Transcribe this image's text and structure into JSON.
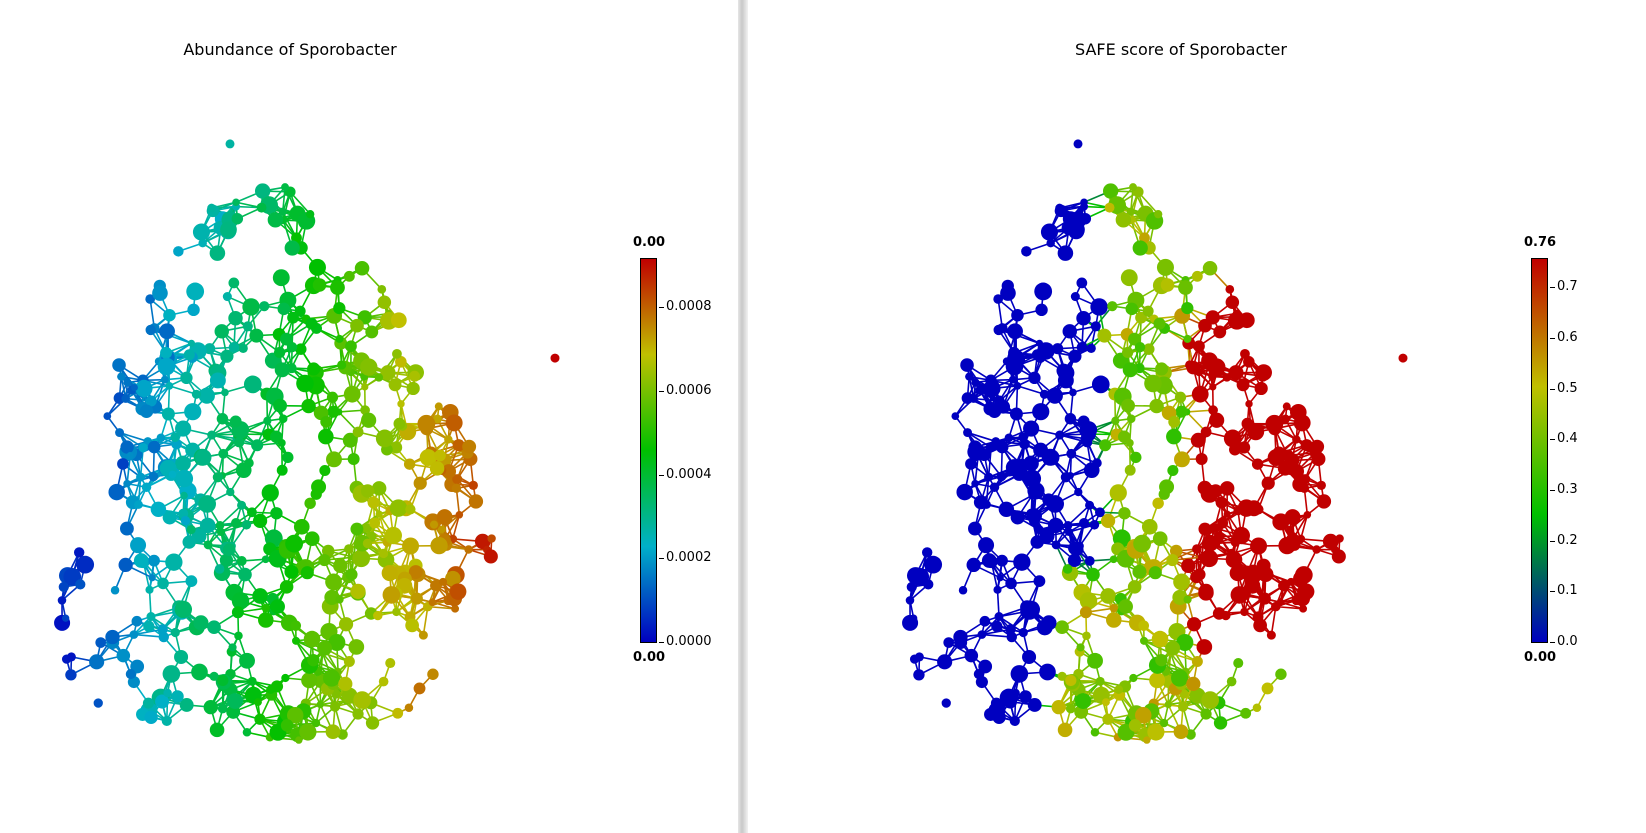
{
  "chart_data": [
    {
      "type": "scatter",
      "subtype": "network",
      "title": "Abundance of Sporobacter",
      "colorbar": {
        "top_label": "0.00",
        "bottom_label": "0.00",
        "ticks": [
          "0.0000",
          "0.0002",
          "0.0004",
          "0.0006",
          "0.0008"
        ],
        "tick_values": [
          0,
          0.0002,
          0.0004,
          0.0006,
          0.0008
        ],
        "range": [
          0,
          0.00092
        ],
        "colormap": [
          "#0000c0",
          "#00b0c8",
          "#00c000",
          "#c0c000",
          "#c00000"
        ]
      },
      "grid": false
    },
    {
      "type": "scatter",
      "subtype": "network",
      "title": "SAFE score of Sporobacter",
      "colorbar": {
        "top_label": "0.76",
        "bottom_label": "0.00",
        "ticks": [
          "0.0",
          "0.1",
          "0.2",
          "0.3",
          "0.4",
          "0.5",
          "0.6",
          "0.7"
        ],
        "tick_values": [
          0,
          0.1,
          0.2,
          0.3,
          0.4,
          0.5,
          0.6,
          0.7
        ],
        "range": [
          0,
          0.76
        ],
        "colormap": [
          "#0000c0",
          "#00c000",
          "#c0c000",
          "#c00000"
        ]
      },
      "grid": false
    }
  ]
}
